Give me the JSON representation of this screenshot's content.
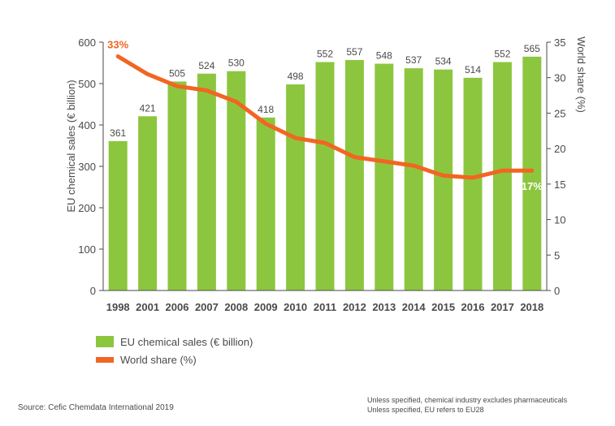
{
  "colors": {
    "bar": "#8cc63f",
    "line": "#f26522",
    "axis": "#4a4a4a",
    "text": "#4a4a4a"
  },
  "chart_data": {
    "type": "bar",
    "categories": [
      "1998",
      "2001",
      "2006",
      "2007",
      "2008",
      "2009",
      "2010",
      "2011",
      "2012",
      "2013",
      "2014",
      "2015",
      "2016",
      "2017",
      "2018"
    ],
    "series": [
      {
        "name": "EU chemical sales (€ billion)",
        "type": "bar",
        "axis": "left",
        "values": [
          361,
          421,
          505,
          524,
          530,
          418,
          498,
          552,
          557,
          548,
          537,
          534,
          514,
          552,
          565
        ]
      },
      {
        "name": "World share (%)",
        "type": "line",
        "axis": "right",
        "values": [
          33,
          30.5,
          28.8,
          28.2,
          26.6,
          23.5,
          21.5,
          20.8,
          18.8,
          18.2,
          17.6,
          16.2,
          15.9,
          16.9,
          16.9
        ]
      }
    ],
    "bar_labels": [
      "361",
      "421",
      "505",
      "524",
      "530",
      "418",
      "498",
      "552",
      "557",
      "548",
      "537",
      "534",
      "514",
      "552",
      "565"
    ],
    "share_labels": {
      "first": "33%",
      "last": "17%"
    },
    "ylabel": "EU chemical sales (€ billion)",
    "y2label": "World share (%)",
    "ylim": [
      0,
      600
    ],
    "y2lim": [
      0,
      35
    ],
    "yticks": [
      "0",
      "100",
      "200",
      "300",
      "400",
      "500",
      "600"
    ],
    "y2ticks": [
      "0",
      "5",
      "10",
      "15",
      "20",
      "25",
      "30",
      "35"
    ],
    "legend": [
      "EU chemical sales (€ billion)",
      "World share (%)"
    ]
  },
  "footer": {
    "source": "Source: Cefic Chemdata International 2019",
    "note1": "Unless specified, chemical industry excludes pharmaceuticals",
    "note2": "Unless specified, EU refers to EU28"
  }
}
